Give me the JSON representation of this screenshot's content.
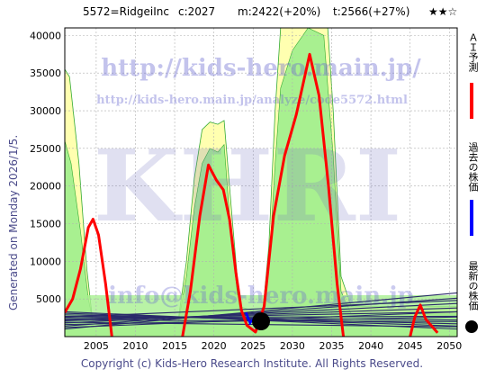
{
  "header": {
    "code": "5572=RidgeiInc",
    "current": "c:2027",
    "mid": "m:2422(+20%)",
    "target": "t:2566(+27%)",
    "stars": "★★☆"
  },
  "watermarks": {
    "url_main": "http://kids-hero.main.jp/",
    "url_page": "http://kids-hero.main.jp/analyze/code5572.html",
    "logo": "KHRI",
    "email": "info@kids-hero.main.jp"
  },
  "generated_note": "Generated on Monday 2026/1/5.",
  "footer": "Copyright (c) Kids-Hero Research Institute. All Rights Reserved.",
  "legend": {
    "ai": "ＡＩ予測",
    "past": "過去の株価",
    "latest": "最新の株価",
    "ai_color": "#ff0000",
    "past_color": "#0000ff",
    "latest_color": "#000000"
  },
  "chart_data": {
    "type": "line",
    "title": "",
    "xlabel": "",
    "ylabel": "",
    "xlim": [
      2001,
      2051
    ],
    "ylim": [
      0,
      41000
    ],
    "x_ticks": [
      2005,
      2010,
      2015,
      2020,
      2025,
      2030,
      2035,
      2040,
      2045,
      2050
    ],
    "y_ticks": [
      5000,
      10000,
      15000,
      20000,
      25000,
      30000,
      35000,
      40000
    ],
    "grid": true,
    "ai_forecast": [
      {
        "x": 2001,
        "y": 3200
      },
      {
        "x": 2002,
        "y": 5000
      },
      {
        "x": 2003,
        "y": 9000
      },
      {
        "x": 2004,
        "y": 14500
      },
      {
        "x": 2004.6,
        "y": 15600
      },
      {
        "x": 2005.3,
        "y": 13500
      },
      {
        "x": 2006.2,
        "y": 7000
      },
      {
        "x": 2007,
        "y": 0
      },
      null,
      {
        "x": 2016,
        "y": 0
      },
      {
        "x": 2017,
        "y": 6000
      },
      {
        "x": 2018.2,
        "y": 16000
      },
      {
        "x": 2019.3,
        "y": 22800
      },
      {
        "x": 2020.3,
        "y": 20800
      },
      {
        "x": 2021.2,
        "y": 19500
      },
      {
        "x": 2022,
        "y": 15500
      },
      {
        "x": 2022.8,
        "y": 8500
      },
      {
        "x": 2023.5,
        "y": 3500
      },
      {
        "x": 2024.2,
        "y": 1500
      },
      {
        "x": 2025.3,
        "y": 600
      },
      {
        "x": 2026.4,
        "y": 4000
      },
      {
        "x": 2027.6,
        "y": 16000
      },
      {
        "x": 2029,
        "y": 24000
      },
      {
        "x": 2030.5,
        "y": 29500
      },
      {
        "x": 2032.2,
        "y": 37500
      },
      {
        "x": 2033.4,
        "y": 32000
      },
      {
        "x": 2034.6,
        "y": 20000
      },
      {
        "x": 2035.7,
        "y": 7000
      },
      {
        "x": 2036.5,
        "y": 0
      },
      null,
      {
        "x": 2045,
        "y": 0
      },
      {
        "x": 2045.6,
        "y": 2600
      },
      {
        "x": 2046.3,
        "y": 4200
      },
      {
        "x": 2047,
        "y": 2300
      },
      {
        "x": 2048.5,
        "y": 500
      }
    ],
    "past_price": [
      {
        "x": 2024.1,
        "y": 3200
      },
      {
        "x": 2024.6,
        "y": 1800
      },
      {
        "x": 2025.2,
        "y": 2600
      },
      {
        "x": 2025.7,
        "y": 2100
      },
      {
        "x": 2026,
        "y": 2027
      }
    ],
    "latest_price": {
      "x": 2026,
      "y": 2027
    },
    "upper_band": [
      {
        "x": 2001,
        "y": 35500
      },
      {
        "x": 2001.6,
        "y": 34500
      },
      {
        "x": 2002.8,
        "y": 23000
      },
      {
        "x": 2003.8,
        "y": 9000
      },
      {
        "x": 2004.5,
        "y": 2500
      },
      {
        "x": 2015.5,
        "y": 2500
      },
      {
        "x": 2016.5,
        "y": 10000
      },
      {
        "x": 2017.5,
        "y": 21000
      },
      {
        "x": 2018.5,
        "y": 27500
      },
      {
        "x": 2019.5,
        "y": 28500
      },
      {
        "x": 2020.5,
        "y": 28200
      },
      {
        "x": 2021.3,
        "y": 28700
      },
      {
        "x": 2022.3,
        "y": 16000
      },
      {
        "x": 2023.3,
        "y": 4000
      },
      {
        "x": 2026.2,
        "y": 3000
      },
      {
        "x": 2027,
        "y": 12000
      },
      {
        "x": 2027.8,
        "y": 30000
      },
      {
        "x": 2028.5,
        "y": 41000
      },
      {
        "x": 2034.5,
        "y": 41000
      },
      {
        "x": 2035.2,
        "y": 30000
      },
      {
        "x": 2036.2,
        "y": 8000
      },
      {
        "x": 2037.5,
        "y": 4000
      },
      {
        "x": 2051,
        "y": 4000
      }
    ],
    "mid_band": [
      {
        "x": 2001,
        "y": 26000
      },
      {
        "x": 2001.8,
        "y": 23000
      },
      {
        "x": 2003,
        "y": 14000
      },
      {
        "x": 2004,
        "y": 5000
      },
      {
        "x": 2004.6,
        "y": 2000
      },
      {
        "x": 2015.5,
        "y": 2000
      },
      {
        "x": 2016.5,
        "y": 8000
      },
      {
        "x": 2017.5,
        "y": 17000
      },
      {
        "x": 2018.5,
        "y": 23000
      },
      {
        "x": 2019.5,
        "y": 25000
      },
      {
        "x": 2020.5,
        "y": 24500
      },
      {
        "x": 2021.3,
        "y": 25500
      },
      {
        "x": 2022.3,
        "y": 12000
      },
      {
        "x": 2023.3,
        "y": 3000
      },
      {
        "x": 2026.2,
        "y": 2500
      },
      {
        "x": 2027,
        "y": 9000
      },
      {
        "x": 2027.8,
        "y": 23000
      },
      {
        "x": 2028.5,
        "y": 33000
      },
      {
        "x": 2030,
        "y": 38000
      },
      {
        "x": 2032,
        "y": 41000
      },
      {
        "x": 2034,
        "y": 40000
      },
      {
        "x": 2035.2,
        "y": 24000
      },
      {
        "x": 2036.2,
        "y": 6000
      },
      {
        "x": 2037.5,
        "y": 3000
      },
      {
        "x": 2051,
        "y": 3000
      }
    ],
    "base_band_top": 5500,
    "colors": {
      "ai": "#ff0000",
      "past": "#0000ff",
      "upper_fill": "#ffffb0",
      "mid_fill": "#a8f090",
      "band_line": "#33aa33",
      "channel": "#2a2a6a",
      "grid": "#b0b0b0"
    }
  }
}
